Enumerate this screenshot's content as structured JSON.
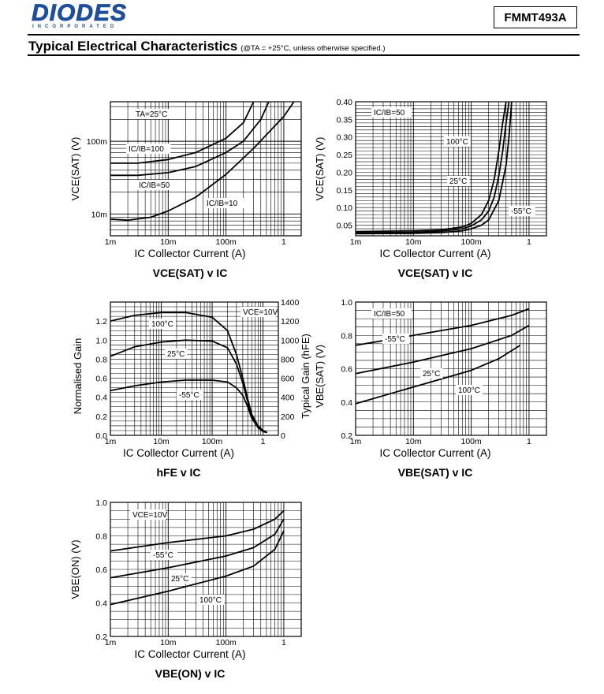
{
  "header": {
    "logo_text": "DIODES",
    "logo_subtext": "INCORPORATED",
    "part_number": "FMMT493A",
    "section_title": "Typical Electrical Characteristics",
    "section_note": "(@TA = +25°C, unless otherwise specified.)"
  },
  "chart_data": [
    {
      "id": "vcesat-tamb",
      "type": "line",
      "title": "VCE(SAT) v IC",
      "xlabel": "IC Collector Current (A)",
      "ylabel": "VCE(SAT) (V)",
      "xscale": "log",
      "yscale": "log",
      "xlim": [
        0.001,
        2.0
      ],
      "ylim": [
        0.005,
        0.35
      ],
      "xticks": [
        {
          "v": 0.001,
          "label": "1m"
        },
        {
          "v": 0.01,
          "label": "10m"
        },
        {
          "v": 0.1,
          "label": "100m"
        },
        {
          "v": 1,
          "label": "1"
        }
      ],
      "yticks": [
        {
          "v": 0.01,
          "label": "10m"
        },
        {
          "v": 0.1,
          "label": "100m"
        }
      ],
      "grid": true,
      "series": [
        {
          "name": "IC/IB=100",
          "x": [
            0.001,
            0.003,
            0.01,
            0.03,
            0.1,
            0.2,
            0.3
          ],
          "y": [
            0.05,
            0.05,
            0.056,
            0.07,
            0.11,
            0.18,
            0.35
          ]
        },
        {
          "name": "IC/IB=50",
          "x": [
            0.001,
            0.003,
            0.01,
            0.03,
            0.1,
            0.2,
            0.4,
            0.55
          ],
          "y": [
            0.034,
            0.034,
            0.037,
            0.045,
            0.07,
            0.1,
            0.2,
            0.35
          ]
        },
        {
          "name": "IC/IB=10",
          "x": [
            0.001,
            0.002,
            0.005,
            0.01,
            0.03,
            0.1,
            0.3,
            1,
            1.5
          ],
          "y": [
            0.0085,
            0.0082,
            0.009,
            0.011,
            0.017,
            0.035,
            0.08,
            0.22,
            0.35
          ]
        }
      ],
      "annotations": [
        "TA=25°C",
        "IC/IB=100",
        "IC/IB=50",
        "IC/IB=10"
      ]
    },
    {
      "id": "vcesat-temp",
      "type": "line",
      "title": "VCE(SAT) v IC",
      "xlabel": "IC Collector Current (A)",
      "ylabel": "VCE(SAT) (V)",
      "xscale": "log",
      "yscale": "linear",
      "xlim": [
        0.001,
        2.0
      ],
      "ylim": [
        0.02,
        0.4
      ],
      "xticks": [
        {
          "v": 0.001,
          "label": "1m"
        },
        {
          "v": 0.01,
          "label": "10m"
        },
        {
          "v": 0.1,
          "label": "100m"
        },
        {
          "v": 1,
          "label": "1"
        }
      ],
      "yticks": [
        {
          "v": 0.05,
          "label": "0.05"
        },
        {
          "v": 0.1,
          "label": "0.10"
        },
        {
          "v": 0.15,
          "label": "0.15"
        },
        {
          "v": 0.2,
          "label": "0.20"
        },
        {
          "v": 0.25,
          "label": "0.25"
        },
        {
          "v": 0.3,
          "label": "0.30"
        },
        {
          "v": 0.35,
          "label": "0.35"
        },
        {
          "v": 0.4,
          "label": "0.40"
        }
      ],
      "grid": true,
      "series": [
        {
          "name": "100°C",
          "x": [
            0.001,
            0.01,
            0.03,
            0.07,
            0.1,
            0.15,
            0.2,
            0.25,
            0.3,
            0.35,
            0.4
          ],
          "y": [
            0.032,
            0.034,
            0.037,
            0.045,
            0.055,
            0.08,
            0.12,
            0.18,
            0.26,
            0.34,
            0.4
          ]
        },
        {
          "name": "25°C",
          "x": [
            0.001,
            0.01,
            0.03,
            0.07,
            0.1,
            0.15,
            0.2,
            0.25,
            0.3,
            0.35,
            0.4,
            0.45
          ],
          "y": [
            0.028,
            0.03,
            0.033,
            0.04,
            0.048,
            0.065,
            0.09,
            0.13,
            0.19,
            0.26,
            0.34,
            0.4
          ]
        },
        {
          "name": "-55°C",
          "x": [
            0.001,
            0.01,
            0.03,
            0.07,
            0.1,
            0.15,
            0.2,
            0.3,
            0.4,
            0.45,
            0.5
          ],
          "y": [
            0.026,
            0.027,
            0.029,
            0.034,
            0.04,
            0.05,
            0.065,
            0.12,
            0.22,
            0.3,
            0.4
          ]
        }
      ],
      "annotations": [
        "IC/IB=50",
        "100°C",
        "25°C",
        "-55°C"
      ]
    },
    {
      "id": "hfe",
      "type": "line",
      "title": "hFE v IC",
      "xlabel": "IC Collector Current (A)",
      "ylabel": "Normalised Gain",
      "y2label": "Typical Gain (hFE)",
      "xscale": "log",
      "yscale": "linear",
      "xlim": [
        0.001,
        2.0
      ],
      "ylim": [
        0.0,
        1.4
      ],
      "xticks": [
        {
          "v": 0.001,
          "label": "1m"
        },
        {
          "v": 0.01,
          "label": "10m"
        },
        {
          "v": 0.1,
          "label": "100m"
        },
        {
          "v": 1,
          "label": "1"
        }
      ],
      "yticks": [
        {
          "v": 0,
          "label": "0.0"
        },
        {
          "v": 0.2,
          "label": "0.2"
        },
        {
          "v": 0.4,
          "label": "0.4"
        },
        {
          "v": 0.6,
          "label": "0.6"
        },
        {
          "v": 0.8,
          "label": "0.8"
        },
        {
          "v": 1.0,
          "label": "1.0"
        },
        {
          "v": 1.2,
          "label": "1.2"
        }
      ],
      "y2ticks": [
        {
          "v": 0,
          "label": "0"
        },
        {
          "v": 0.2,
          "label": "200"
        },
        {
          "v": 0.4,
          "label": "400"
        },
        {
          "v": 0.6,
          "label": "600"
        },
        {
          "v": 0.8,
          "label": "800"
        },
        {
          "v": 1.0,
          "label": "1000"
        },
        {
          "v": 1.2,
          "label": "1200"
        },
        {
          "v": 1.4,
          "label": "1400"
        }
      ],
      "grid": true,
      "series": [
        {
          "name": "100°C",
          "x": [
            0.001,
            0.003,
            0.01,
            0.03,
            0.1,
            0.2,
            0.3,
            0.4,
            0.5,
            0.6,
            0.8,
            1.0,
            1.2
          ],
          "y": [
            1.2,
            1.26,
            1.29,
            1.29,
            1.24,
            1.1,
            0.85,
            0.6,
            0.38,
            0.22,
            0.1,
            0.05,
            0.03
          ]
        },
        {
          "name": "25°C",
          "x": [
            0.001,
            0.003,
            0.01,
            0.03,
            0.1,
            0.2,
            0.3,
            0.4,
            0.5,
            0.6,
            0.8,
            1.0,
            1.2
          ],
          "y": [
            0.83,
            0.93,
            0.98,
            1.0,
            0.99,
            0.92,
            0.75,
            0.55,
            0.35,
            0.2,
            0.09,
            0.05,
            0.03
          ]
        },
        {
          "name": "-55°C",
          "x": [
            0.001,
            0.003,
            0.01,
            0.03,
            0.1,
            0.2,
            0.3,
            0.4,
            0.5,
            0.6,
            0.8,
            1.0,
            1.2
          ],
          "y": [
            0.47,
            0.52,
            0.56,
            0.58,
            0.58,
            0.56,
            0.5,
            0.42,
            0.3,
            0.18,
            0.08,
            0.04,
            0.03
          ]
        }
      ],
      "annotations": [
        "VCE=10V",
        "100°C",
        "25°C",
        "-55°C"
      ]
    },
    {
      "id": "vbesat",
      "type": "line",
      "title": "VBE(SAT) v IC",
      "xlabel": "IC Collector Current (A)",
      "ylabel": "VBE(SAT) (V)",
      "xscale": "log",
      "yscale": "linear",
      "xlim": [
        0.001,
        2.0
      ],
      "ylim": [
        0.2,
        1.0
      ],
      "xticks": [
        {
          "v": 0.001,
          "label": "1m"
        },
        {
          "v": 0.01,
          "label": "10m"
        },
        {
          "v": 0.1,
          "label": "100m"
        },
        {
          "v": 1,
          "label": "1"
        }
      ],
      "yticks": [
        {
          "v": 0.2,
          "label": "0.2"
        },
        {
          "v": 0.4,
          "label": "0.4"
        },
        {
          "v": 0.6,
          "label": "0.6"
        },
        {
          "v": 0.8,
          "label": "0.8"
        },
        {
          "v": 1.0,
          "label": "1.0"
        }
      ],
      "grid": true,
      "series": [
        {
          "name": "-55°C",
          "x": [
            0.001,
            0.01,
            0.1,
            0.5,
            1.0
          ],
          "y": [
            0.74,
            0.8,
            0.86,
            0.92,
            0.96
          ]
        },
        {
          "name": "25°C",
          "x": [
            0.001,
            0.01,
            0.1,
            0.5,
            1.0
          ],
          "y": [
            0.57,
            0.64,
            0.72,
            0.8,
            0.86
          ]
        },
        {
          "name": "100°C",
          "x": [
            0.001,
            0.01,
            0.1,
            0.3,
            0.7
          ],
          "y": [
            0.39,
            0.49,
            0.59,
            0.66,
            0.74
          ]
        }
      ],
      "annotations": [
        "IC/IB=50",
        "-55°C",
        "25°C",
        "100°C"
      ]
    },
    {
      "id": "vbeon",
      "type": "line",
      "title": "VBE(ON) v IC",
      "xlabel": "IC Collector Current (A)",
      "ylabel": "VBE(ON) (V)",
      "xscale": "log",
      "yscale": "linear",
      "xlim": [
        0.001,
        2.0
      ],
      "ylim": [
        0.2,
        1.0
      ],
      "xticks": [
        {
          "v": 0.001,
          "label": "1m"
        },
        {
          "v": 0.01,
          "label": "10m"
        },
        {
          "v": 0.1,
          "label": "100m"
        },
        {
          "v": 1,
          "label": "1"
        }
      ],
      "yticks": [
        {
          "v": 0.2,
          "label": "0.2"
        },
        {
          "v": 0.4,
          "label": "0.4"
        },
        {
          "v": 0.6,
          "label": "0.6"
        },
        {
          "v": 0.8,
          "label": "0.8"
        },
        {
          "v": 1.0,
          "label": "1.0"
        }
      ],
      "grid": true,
      "series": [
        {
          "name": "-55°C",
          "x": [
            0.001,
            0.01,
            0.1,
            0.3,
            0.7,
            1.0
          ],
          "y": [
            0.71,
            0.76,
            0.8,
            0.84,
            0.9,
            0.95
          ]
        },
        {
          "name": "25°C",
          "x": [
            0.001,
            0.01,
            0.1,
            0.3,
            0.7,
            1.0
          ],
          "y": [
            0.55,
            0.61,
            0.68,
            0.73,
            0.81,
            0.9
          ]
        },
        {
          "name": "100°C",
          "x": [
            0.001,
            0.01,
            0.1,
            0.3,
            0.7,
            1.0
          ],
          "y": [
            0.39,
            0.47,
            0.56,
            0.62,
            0.72,
            0.83
          ]
        }
      ],
      "annotations": [
        "VCE=10V",
        "-55°C",
        "25°C",
        "100°C"
      ]
    }
  ]
}
